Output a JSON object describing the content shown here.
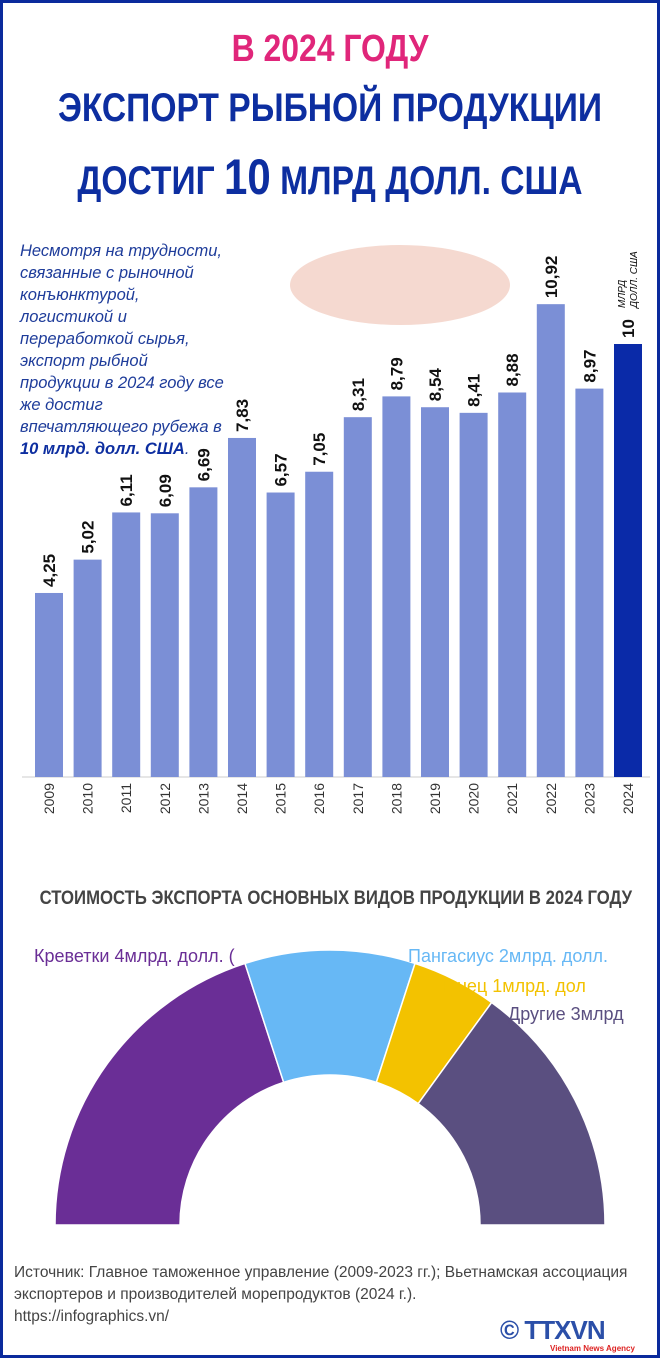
{
  "title": {
    "line1": "В 2024 ГОДУ",
    "line2": "ЭКСПОРТ РЫБНОЙ ПРОДУКЦИИ",
    "line3_pre": "ДОСТИГ ",
    "line3_num": "10",
    "line3_post": " МЛРД ДОЛЛ. США"
  },
  "intro": {
    "text": "Несмотря на трудности, связанные с рыночной конъюнктурой, логистикой и переработкой сырья, экспорт рыбной продукции в 2024 году все же достиг впечатляющего рубежа в ",
    "highlight": "10 млрд. долл. США",
    "end": "."
  },
  "colors": {
    "bar": "#7b8fd6",
    "bar_highlight": "#0a2aa8",
    "shrimp": "#6a2e96",
    "pangasius": "#67b8f5",
    "tuna": "#f3c200",
    "other": "#5a4f80"
  },
  "chart_data": [
    {
      "type": "bar",
      "title": "",
      "xlabel": "",
      "ylabel": "млрд долл. США",
      "ylim": [
        0,
        11
      ],
      "categories": [
        "2009",
        "2010",
        "2011",
        "2012",
        "2013",
        "2014",
        "2015",
        "2016",
        "2017",
        "2018",
        "2019",
        "2020",
        "2021",
        "2022",
        "2023",
        "2024"
      ],
      "values": [
        4.25,
        5.02,
        6.11,
        6.09,
        6.69,
        7.83,
        6.57,
        7.05,
        8.31,
        8.79,
        8.54,
        8.41,
        8.88,
        10.92,
        8.97,
        10
      ],
      "labels": [
        "4,25",
        "5,02",
        "6,11",
        "6,09",
        "6,69",
        "7,83",
        "6,57",
        "7,05",
        "8,31",
        "8,79",
        "8,54",
        "8,41",
        "8,88",
        "10,92",
        "8,97",
        "10"
      ],
      "highlight_unit_1": "МЛРД",
      "highlight_unit_2": "ДОЛЛ. США"
    },
    {
      "type": "pie",
      "title": "СТОИМОСТЬ ЭКСПОРТА ОСНОВНЫХ ВИДОВ ПРОДУКЦИИ В 2024 ГОДУ",
      "slices": [
        {
          "label": "Креветки 4млрд. долл. (",
          "value": 4
        },
        {
          "label": "Пангасиус 2млрд. долл.",
          "value": 2
        },
        {
          "label": "Тунец 1млрд. дол",
          "value": 1
        },
        {
          "label": "Другие 3млрд",
          "value": 3
        }
      ]
    }
  ],
  "footer": {
    "source_line1": "Источник: Главное таможенное управление (2009-2023 гг.); Вьетнамская ассоциация",
    "source_line2": "экспортеров и производителей морепродуктов (2024 г.).",
    "url": "https://infographics.vn/",
    "logo": "© TTXVN",
    "logo_sub": "Vietnam News Agency"
  }
}
